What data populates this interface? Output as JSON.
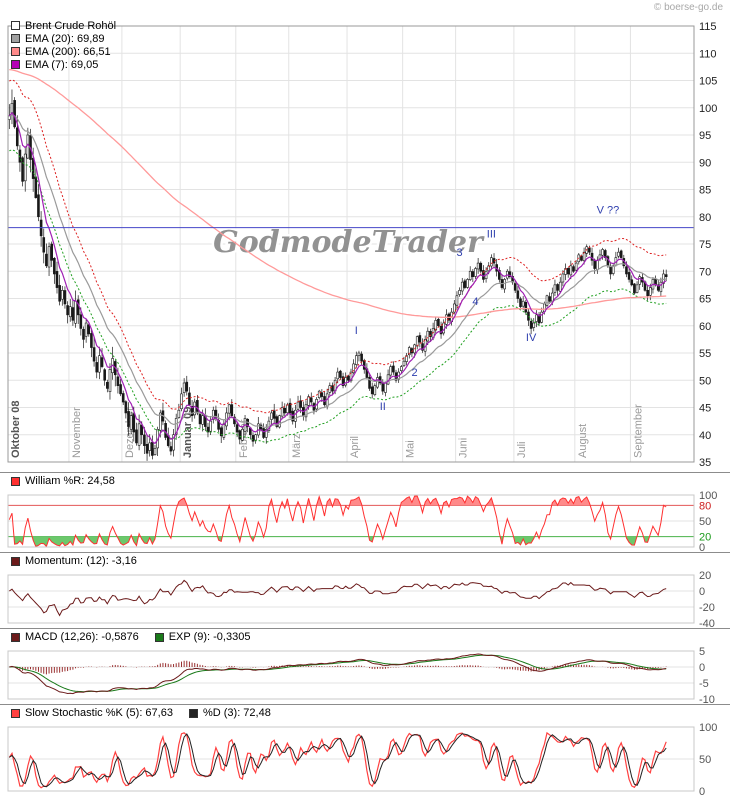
{
  "header": {
    "copyright": "© boerse-go.de"
  },
  "watermark_text": "GodmodeTrader",
  "chart_data": [
    {
      "id": "price",
      "type": "candlestick",
      "title": "Brent Crude Rohöl",
      "legend": [
        {
          "label": "Brent Crude Rohöl",
          "swatch": "#ffffff"
        },
        {
          "label": "EMA (20): 69,89",
          "swatch": "#a0a0a0"
        },
        {
          "label": "EMA (200): 66,51",
          "swatch": "#ff8a8a"
        },
        {
          "label": "EMA (7): 69,05",
          "swatch": "#b400b4"
        }
      ],
      "ylim": [
        35,
        115
      ],
      "y_tick_step": 5,
      "right_padding_days": 10,
      "x_months": [
        {
          "label": "Oktober 08",
          "days": 23,
          "bold": true
        },
        {
          "label": "November",
          "days": 20,
          "bold": false
        },
        {
          "label": "Dezember",
          "days": 22,
          "bold": false
        },
        {
          "label": "Januar 09",
          "days": 21,
          "bold": true
        },
        {
          "label": "Februar",
          "days": 20,
          "bold": false
        },
        {
          "label": "März",
          "days": 22,
          "bold": false
        },
        {
          "label": "April",
          "days": 21,
          "bold": false
        },
        {
          "label": "Mai",
          "days": 20,
          "bold": false
        },
        {
          "label": "Juni",
          "days": 22,
          "bold": false
        },
        {
          "label": "Juli",
          "days": 23,
          "bold": false
        },
        {
          "label": "August",
          "days": 21,
          "bold": false
        },
        {
          "label": "September",
          "days": 14,
          "bold": false
        }
      ],
      "closes": [
        98.5,
        100.8,
        96.5,
        93,
        90,
        86.5,
        91.5,
        95,
        90.5,
        87,
        83.5,
        80,
        76.5,
        73.5,
        71,
        74.5,
        72,
        69.5,
        67,
        64.5,
        66.5,
        64,
        62,
        63.5,
        61,
        64.5,
        62,
        59.5,
        57.5,
        60.5,
        58.5,
        56,
        53.5,
        51.5,
        54.5,
        52.5,
        50,
        48.5,
        52,
        54,
        51,
        49,
        47.5,
        46,
        44,
        41.5,
        43.5,
        40.5,
        38.5,
        42,
        40,
        38,
        36.6,
        38.5,
        36.2,
        37.5,
        41,
        44,
        42.5,
        39.5,
        38,
        37,
        40,
        43,
        44.5,
        47.5,
        49.5,
        48,
        45.5,
        43.5,
        46,
        44,
        42,
        43.5,
        41.5,
        40.5,
        42.5,
        44.5,
        43,
        41,
        39.8,
        42,
        44,
        45.5,
        43.5,
        42,
        40.5,
        39.2,
        41,
        43,
        41.5,
        40,
        38.8,
        40,
        42,
        41,
        39.5,
        41,
        42.5,
        44,
        43,
        41.5,
        43.5,
        45,
        44,
        45.5,
        44,
        42.5,
        44.5,
        46,
        45,
        43.5,
        45.5,
        47,
        46,
        44.5,
        46.5,
        48,
        47,
        45.5,
        47.5,
        49,
        48,
        50,
        51.5,
        50.5,
        49,
        50.5,
        50,
        51.5,
        53,
        54.5,
        55,
        53.5,
        52,
        50.5,
        48.5,
        47.5,
        49,
        50.5,
        49.5,
        48,
        49.5,
        51,
        52.5,
        51.5,
        50,
        51.5,
        52.5,
        53.5,
        54.5,
        56,
        55,
        56.5,
        58,
        57,
        55.5,
        57.5,
        59,
        58,
        59.5,
        61,
        60,
        58.5,
        60.5,
        62,
        61,
        62.5,
        64,
        65.5,
        66.5,
        68,
        67,
        68.5,
        70,
        69,
        70.5,
        71.5,
        70,
        68.5,
        70,
        71,
        72.5,
        71.5,
        70,
        68.5,
        67,
        68.5,
        70,
        69,
        68,
        66.5,
        65,
        63.5,
        64.5,
        62.5,
        61,
        59.5,
        60.5,
        62,
        60.5,
        62.5,
        64,
        65.5,
        64.5,
        66,
        67.5,
        66.5,
        68,
        69.5,
        70.5,
        69.5,
        71,
        70,
        71.5,
        73,
        72,
        73.5,
        74.5,
        73.5,
        72,
        70.5,
        72,
        73,
        74,
        72.5,
        71,
        69.5,
        71,
        72.5,
        73.5,
        72.5,
        71,
        69.5,
        68.5,
        67.5,
        66,
        67.5,
        69,
        68,
        66.5,
        65.5,
        67,
        68.5,
        67.5,
        66.5,
        68,
        69.5,
        69
      ],
      "candle_color": "#181818",
      "overlays": {
        "ema_periods": [
          7,
          20,
          200
        ],
        "ema_colors": {
          "7": "#a020b4",
          "20": "#9a9a9a",
          "200": "#ff9a9a"
        },
        "ema200_seed": 107,
        "envelope_pct": 6.5,
        "envelope_colors": {
          "upper": "#dd2222",
          "lower": "#22a022"
        },
        "horizontal_line": {
          "value": 78,
          "color": "#4446c8"
        }
      },
      "wave_labels": [
        {
          "text": "I",
          "day": 131,
          "price": 58.5
        },
        {
          "text": "II",
          "day": 141,
          "price": 44.5
        },
        {
          "text": "2",
          "day": 153,
          "price": 50.8
        },
        {
          "text": "3",
          "day": 170,
          "price": 72.8
        },
        {
          "text": "4",
          "day": 176,
          "price": 63.8
        },
        {
          "text": "III",
          "day": 182,
          "price": 76.2
        },
        {
          "text": "IV",
          "day": 197,
          "price": 57.2
        },
        {
          "text": "V ??",
          "day": 226,
          "price": 80.6
        }
      ],
      "wave_label_color": "#2f3fae"
    },
    {
      "id": "williams",
      "type": "line",
      "legend": [
        {
          "label": "William %R: 24,58",
          "swatch": "#ff3030"
        }
      ],
      "ylim": [
        0,
        100
      ],
      "y_ticks": [
        {
          "v": 100,
          "color": "#555555"
        },
        {
          "v": 80,
          "color": "#cc2020",
          "line": "#e05050"
        },
        {
          "v": 50,
          "color": "#555555"
        },
        {
          "v": 20,
          "color": "#1a9a1a",
          "line": "#45b045"
        },
        {
          "v": 0,
          "color": "#555555"
        }
      ],
      "derived": {
        "indicator": "williams_r",
        "period": 14
      },
      "thresholds": {
        "upper": 80,
        "lower": 20,
        "upper_color": "#ff8a8a",
        "lower_color": "#6cc86c",
        "line_color": "#ff3030"
      }
    },
    {
      "id": "momentum",
      "type": "line",
      "legend": [
        {
          "label": "Momentum: (12): -3,16",
          "swatch": "#6b1a1a"
        }
      ],
      "ylim": [
        -40,
        20
      ],
      "y_ticks": [
        20,
        0,
        -20,
        -40
      ],
      "derived": {
        "indicator": "momentum",
        "period": 12
      },
      "line_color": "#6b1a1a"
    },
    {
      "id": "macd",
      "type": "line+histogram",
      "legend": [
        {
          "label": "MACD (12,26): -0,5876",
          "swatch": "#6b1a1a"
        },
        {
          "label": "EXP (9): -0,3305",
          "swatch": "#1a7a1a"
        }
      ],
      "ylim": [
        -10,
        5
      ],
      "y_ticks": [
        5,
        0,
        -5,
        -10
      ],
      "derived": {
        "indicator": "macd",
        "fast": 12,
        "slow": 26,
        "signal": 9
      },
      "colors": {
        "macd": "#6b1a1a",
        "signal": "#1a7a1a",
        "histogram": "#993030"
      }
    },
    {
      "id": "stochastic",
      "type": "line",
      "legend": [
        {
          "label": "Slow Stochastic %K (5): 67,63",
          "swatch": "#ff4040"
        },
        {
          "label": "%D (3): 72,48",
          "swatch": "#222222"
        }
      ],
      "ylim": [
        0,
        100
      ],
      "y_ticks": [
        100,
        50,
        0
      ],
      "derived": {
        "indicator": "slow_stochastic",
        "k": 5,
        "d": 3
      },
      "colors": {
        "k": "#ff4040",
        "d": "#222222"
      }
    }
  ]
}
